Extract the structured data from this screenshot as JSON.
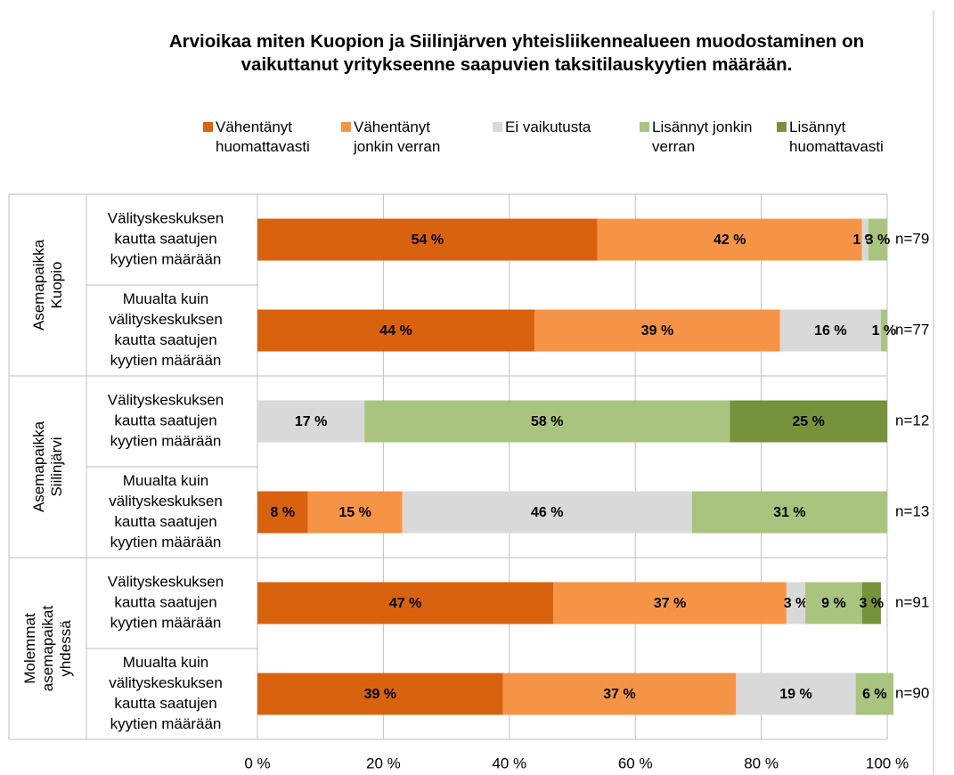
{
  "chart_data": {
    "type": "bar",
    "orientation": "horizontal",
    "stacked": true,
    "title": "Arvioikaa miten Kuopion ja Siilinjärven yhteisliikennealueen muodostaminen on vaikuttanut yritykseenne saapuvien taksitilauskyytien määrään.",
    "groups": [
      {
        "label": [
          "Asemapaikka",
          "Kuopio"
        ]
      },
      {
        "label": [
          "Asemapaikka",
          "Siilinjärvi"
        ]
      },
      {
        "label": [
          "Molemmat",
          "asemapaikat",
          "yhdessä"
        ]
      }
    ],
    "categories": [
      [
        "Välityskeskuksen",
        "kautta saatujen",
        "kyytien määrään"
      ],
      [
        "Muualta kuin",
        "välityskeskuksen",
        "kautta saatujen",
        "kyytien määrään"
      ],
      [
        "Välityskeskuksen",
        "kautta saatujen",
        "kyytien määrään"
      ],
      [
        "Muualta kuin",
        "välityskeskuksen",
        "kautta saatujen",
        "kyytien määrään"
      ],
      [
        "Välityskeskuksen",
        "kautta saatujen",
        "kyytien määrään"
      ],
      [
        "Muualta kuin",
        "välityskeskuksen",
        "kautta saatujen",
        "kyytien määrään"
      ]
    ],
    "n_labels": [
      "n=79",
      "n=77",
      "n=12",
      "n=13",
      "n=91",
      "n=90"
    ],
    "series": [
      {
        "name": "Vähentänyt huomattavasti",
        "color": "#d9620f",
        "values": [
          54,
          44,
          null,
          8,
          47,
          39
        ],
        "value_labels": [
          "54 %",
          "44 %",
          null,
          "8 %",
          "47 %",
          "39 %"
        ]
      },
      {
        "name": "Vähentänyt jonkin verran",
        "color": "#f59447",
        "values": [
          42,
          39,
          null,
          15,
          37,
          37
        ],
        "value_labels": [
          "42 %",
          "39 %",
          null,
          "15 %",
          "37 %",
          "37 %"
        ]
      },
      {
        "name": "Ei vaikutusta",
        "color": "#d9d9d9",
        "values": [
          1,
          16,
          17,
          46,
          3,
          19
        ],
        "value_labels": [
          "1 %",
          "16 %",
          "17 %",
          "46 %",
          "3 %",
          "19 %"
        ]
      },
      {
        "name": "Lisännyt jonkin verran",
        "color": "#a9c47f",
        "values": [
          3,
          1,
          58,
          31,
          9,
          6
        ],
        "value_labels": [
          "3 %",
          "1 %",
          "58 %",
          "31 %",
          "9 %",
          "6 %"
        ]
      },
      {
        "name": "Lisännyt huomattavasti",
        "color": "#76933c",
        "values": [
          null,
          null,
          25,
          null,
          3,
          null
        ],
        "value_labels": [
          null,
          null,
          "25 %",
          null,
          "3 %",
          null
        ]
      }
    ],
    "xlim": [
      0,
      100
    ],
    "xticks": [
      {
        "value": 0,
        "label": "0 %"
      },
      {
        "value": 20,
        "label": "20 %"
      },
      {
        "value": 40,
        "label": "40 %"
      },
      {
        "value": 60,
        "label": "60 %"
      },
      {
        "value": 80,
        "label": "80 %"
      },
      {
        "value": 100,
        "label": "100 %"
      }
    ],
    "grid": true
  }
}
